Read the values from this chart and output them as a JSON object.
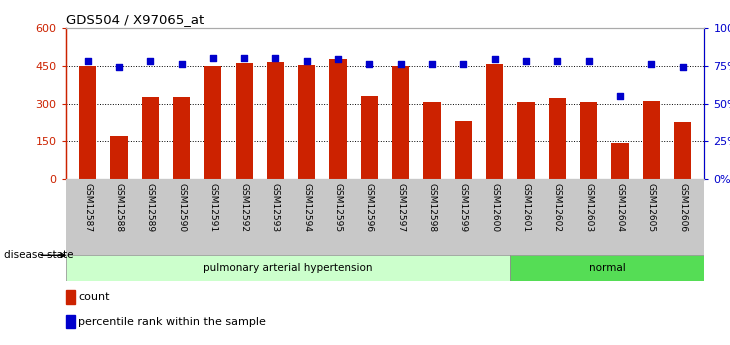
{
  "title": "GDS504 / X97065_at",
  "samples": [
    "GSM12587",
    "GSM12588",
    "GSM12589",
    "GSM12590",
    "GSM12591",
    "GSM12592",
    "GSM12593",
    "GSM12594",
    "GSM12595",
    "GSM12596",
    "GSM12597",
    "GSM12598",
    "GSM12599",
    "GSM12600",
    "GSM12601",
    "GSM12602",
    "GSM12603",
    "GSM12604",
    "GSM12605",
    "GSM12606"
  ],
  "counts": [
    450,
    170,
    325,
    325,
    450,
    460,
    465,
    452,
    475,
    330,
    450,
    305,
    230,
    455,
    305,
    320,
    305,
    145,
    310,
    225
  ],
  "percentiles": [
    78,
    74,
    78,
    76,
    80,
    80,
    80,
    78,
    79,
    76,
    76,
    76,
    76,
    79,
    78,
    78,
    78,
    55,
    76,
    74
  ],
  "pah_count": 14,
  "bar_color": "#cc2200",
  "dot_color": "#0000cc",
  "pah_bg": "#ccffcc",
  "normal_bg": "#55dd55",
  "ylim_left": [
    0,
    600
  ],
  "ylim_right": [
    0,
    100
  ],
  "yticks_left": [
    0,
    150,
    300,
    450,
    600
  ],
  "yticks_right": [
    0,
    25,
    50,
    75,
    100
  ],
  "ytick_labels_left": [
    "0",
    "150",
    "300",
    "450",
    "600"
  ],
  "ytick_labels_right": [
    "0%",
    "25%",
    "50%",
    "75%",
    "100%"
  ],
  "grid_values": [
    150,
    300,
    450
  ],
  "label_count": "count",
  "label_percentile": "percentile rank within the sample",
  "disease_state_label": "disease state",
  "pah_label": "pulmonary arterial hypertension",
  "normal_label": "normal",
  "bar_width": 0.55,
  "xticklabel_bg": "#c8c8c8"
}
